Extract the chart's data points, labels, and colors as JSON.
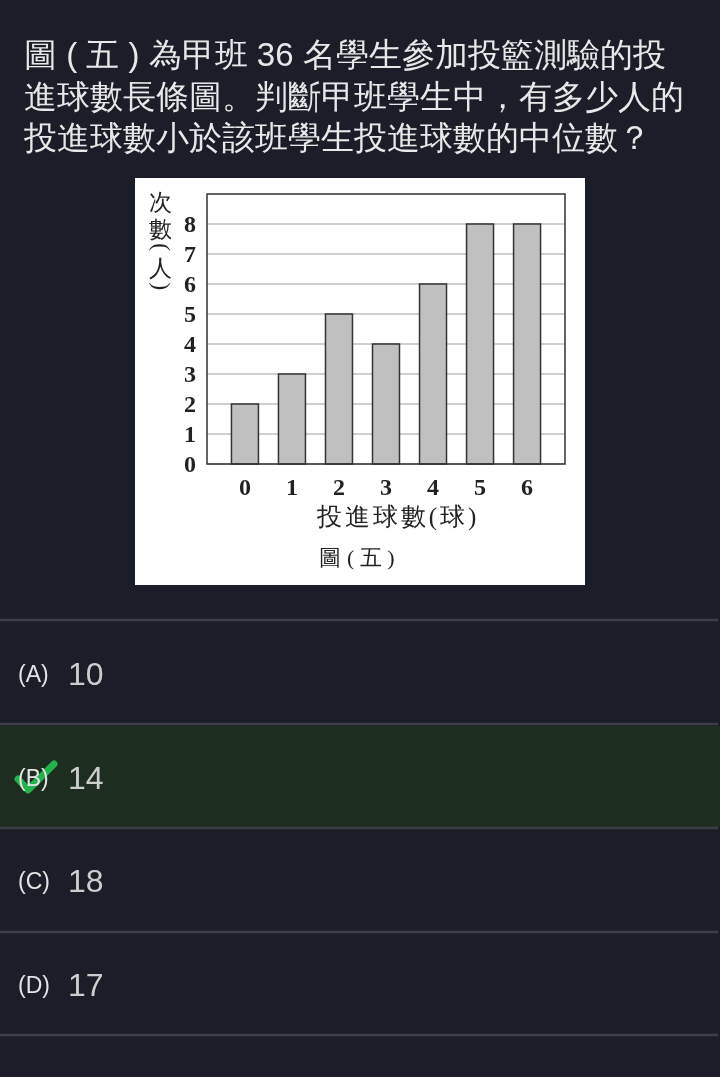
{
  "chart_data": {
    "type": "bar",
    "title": "圖 ( 五 ) 為甲班 36 名學生參加投籃測驗的投進球數長條圖。判斷甲班學生中，有多少人的投進球數小於該班學生投進球數的中位數？",
    "xlabel": "投進球數(球)",
    "ylabel": "次數(人)",
    "categories": [
      "0",
      "1",
      "2",
      "3",
      "4",
      "5",
      "6"
    ],
    "values": [
      2,
      3,
      5,
      4,
      6,
      8,
      8
    ],
    "color": "#c0c0c0",
    "ylim": [
      0,
      9
    ],
    "yticks": [
      0,
      1,
      2,
      3,
      4,
      5,
      6,
      7,
      8
    ],
    "grid": "y",
    "annotations": [
      "圖 ( 五 )",
      "(A) 10",
      "(B) 14",
      "(C) 18",
      "(D) 17"
    ]
  }
}
